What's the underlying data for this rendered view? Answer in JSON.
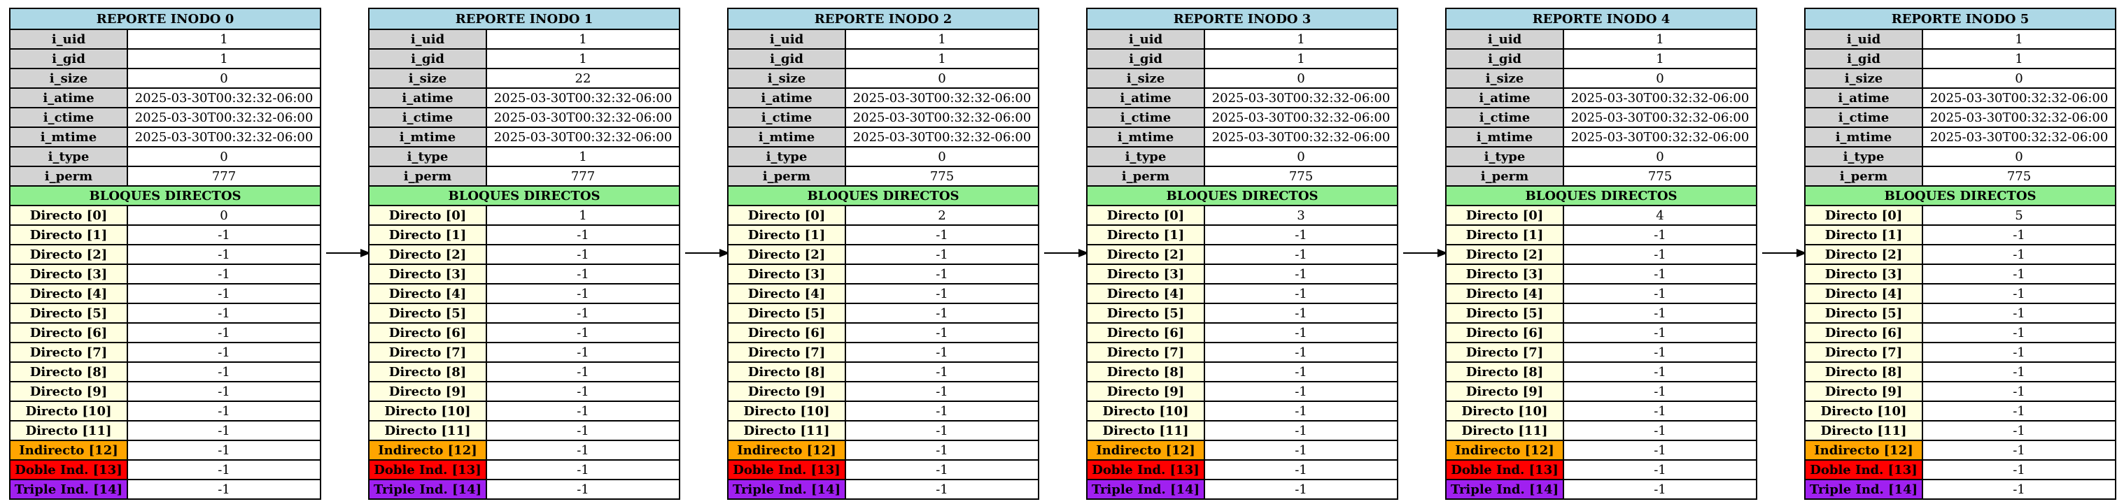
{
  "colors": {
    "title_bg": "#add8e6",
    "attr_key_bg": "#d3d3d3",
    "section_bg": "#90ee90",
    "direct_key_bg": "#ffffe0",
    "indirect_bg": "#ffa500",
    "double_ind_bg": "#ff0000",
    "triple_ind_bg": "#a020f0"
  },
  "section_title": "BLOQUES DIRECTOS",
  "attr_labels": [
    "i_uid",
    "i_gid",
    "i_size",
    "i_atime",
    "i_ctime",
    "i_mtime",
    "i_type",
    "i_perm"
  ],
  "block_labels": [
    "Directo [0]",
    "Directo [1]",
    "Directo [2]",
    "Directo [3]",
    "Directo [4]",
    "Directo [5]",
    "Directo [6]",
    "Directo [7]",
    "Directo [8]",
    "Directo [9]",
    "Directo [10]",
    "Directo [11]",
    "Indirecto [12]",
    "Doble Ind. [13]",
    "Triple Ind. [14]"
  ],
  "inodes": [
    {
      "title": "REPORTE INODO 0",
      "attrs": [
        "1",
        "1",
        "0",
        "2025-03-30T00:32:32-06:00",
        "2025-03-30T00:32:32-06:00",
        "2025-03-30T00:32:32-06:00",
        "0",
        "777"
      ],
      "blocks": [
        "0",
        "-1",
        "-1",
        "-1",
        "-1",
        "-1",
        "-1",
        "-1",
        "-1",
        "-1",
        "-1",
        "-1",
        "-1",
        "-1",
        "-1"
      ]
    },
    {
      "title": "REPORTE INODO 1",
      "attrs": [
        "1",
        "1",
        "22",
        "2025-03-30T00:32:32-06:00",
        "2025-03-30T00:32:32-06:00",
        "2025-03-30T00:32:32-06:00",
        "1",
        "777"
      ],
      "blocks": [
        "1",
        "-1",
        "-1",
        "-1",
        "-1",
        "-1",
        "-1",
        "-1",
        "-1",
        "-1",
        "-1",
        "-1",
        "-1",
        "-1",
        "-1"
      ]
    },
    {
      "title": "REPORTE INODO 2",
      "attrs": [
        "1",
        "1",
        "0",
        "2025-03-30T00:32:32-06:00",
        "2025-03-30T00:32:32-06:00",
        "2025-03-30T00:32:32-06:00",
        "0",
        "775"
      ],
      "blocks": [
        "2",
        "-1",
        "-1",
        "-1",
        "-1",
        "-1",
        "-1",
        "-1",
        "-1",
        "-1",
        "-1",
        "-1",
        "-1",
        "-1",
        "-1"
      ]
    },
    {
      "title": "REPORTE INODO 3",
      "attrs": [
        "1",
        "1",
        "0",
        "2025-03-30T00:32:32-06:00",
        "2025-03-30T00:32:32-06:00",
        "2025-03-30T00:32:32-06:00",
        "0",
        "775"
      ],
      "blocks": [
        "3",
        "-1",
        "-1",
        "-1",
        "-1",
        "-1",
        "-1",
        "-1",
        "-1",
        "-1",
        "-1",
        "-1",
        "-1",
        "-1",
        "-1"
      ]
    },
    {
      "title": "REPORTE INODO 4",
      "attrs": [
        "1",
        "1",
        "0",
        "2025-03-30T00:32:32-06:00",
        "2025-03-30T00:32:32-06:00",
        "2025-03-30T00:32:32-06:00",
        "0",
        "775"
      ],
      "blocks": [
        "4",
        "-1",
        "-1",
        "-1",
        "-1",
        "-1",
        "-1",
        "-1",
        "-1",
        "-1",
        "-1",
        "-1",
        "-1",
        "-1",
        "-1"
      ]
    },
    {
      "title": "REPORTE INODO 5",
      "attrs": [
        "1",
        "1",
        "0",
        "2025-03-30T00:32:32-06:00",
        "2025-03-30T00:32:32-06:00",
        "2025-03-30T00:32:32-06:00",
        "0",
        "775"
      ],
      "blocks": [
        "5",
        "-1",
        "-1",
        "-1",
        "-1",
        "-1",
        "-1",
        "-1",
        "-1",
        "-1",
        "-1",
        "-1",
        "-1",
        "-1",
        "-1"
      ]
    }
  ]
}
